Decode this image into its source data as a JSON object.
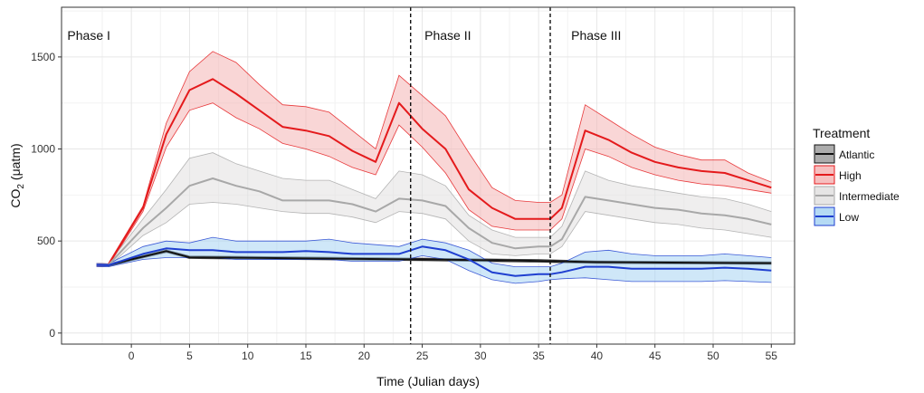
{
  "chart_data": {
    "type": "line",
    "xlabel": "Time (Julian days)",
    "ylabel_main": "CO",
    "ylabel_sub": "2",
    "ylabel_unit": "(μatm)",
    "xlim": [
      -6,
      57
    ],
    "ylim": [
      -60,
      1770
    ],
    "xticks": [
      0,
      5,
      10,
      15,
      20,
      25,
      30,
      35,
      40,
      45,
      50,
      55
    ],
    "yticks": [
      0,
      500,
      1000,
      1500
    ],
    "grid": true,
    "vlines": [
      24,
      36
    ],
    "phases": [
      {
        "label": "Phase I",
        "x": -5.5
      },
      {
        "label": "Phase II",
        "x": 25.2
      },
      {
        "label": "Phase III",
        "x": 37.8
      }
    ],
    "legend": {
      "title": "Treatment",
      "position": "right"
    },
    "series": [
      {
        "name": "Atlantic",
        "line_color": "#111111",
        "fill_color": "#9e9e9e",
        "x": [
          -3,
          -2,
          0,
          3,
          5,
          25,
          30,
          35,
          40,
          55
        ],
        "y": [
          370,
          368,
          400,
          445,
          412,
          400,
          396,
          392,
          385,
          380
        ],
        "lower": [
          362,
          360,
          393,
          438,
          405,
          393,
          389,
          385,
          378,
          373
        ],
        "upper": [
          378,
          376,
          407,
          452,
          419,
          407,
          403,
          399,
          392,
          387
        ]
      },
      {
        "name": "High",
        "line_color": "#e41a1c",
        "fill_color": "#f4b4b4",
        "x": [
          -3,
          -2,
          1,
          3,
          5,
          7,
          9,
          11,
          13,
          15,
          17,
          19,
          21,
          23,
          25,
          27,
          29,
          31,
          33,
          35,
          36,
          37,
          39,
          41,
          43,
          45,
          47,
          49,
          51,
          53,
          55
        ],
        "y": [
          370,
          368,
          680,
          1080,
          1320,
          1380,
          1300,
          1210,
          1120,
          1100,
          1070,
          990,
          930,
          1250,
          1110,
          1000,
          780,
          680,
          620,
          620,
          620,
          680,
          1100,
          1050,
          980,
          930,
          900,
          880,
          870,
          830,
          790
        ],
        "lower": [
          362,
          360,
          660,
          1010,
          1210,
          1250,
          1170,
          1110,
          1030,
          1000,
          960,
          900,
          860,
          1130,
          1010,
          870,
          670,
          580,
          560,
          560,
          560,
          620,
          1000,
          960,
          900,
          860,
          830,
          810,
          800,
          780,
          760
        ],
        "upper": [
          378,
          376,
          690,
          1140,
          1420,
          1530,
          1470,
          1350,
          1240,
          1230,
          1200,
          1100,
          1000,
          1400,
          1290,
          1180,
          980,
          790,
          720,
          710,
          710,
          750,
          1240,
          1160,
          1080,
          1010,
          970,
          940,
          940,
          870,
          820
        ]
      },
      {
        "name": "Intermediate",
        "line_color": "#a8a8a8",
        "fill_color": "#e2e0e0",
        "x": [
          -3,
          -2,
          1,
          3,
          5,
          7,
          9,
          11,
          13,
          15,
          17,
          19,
          21,
          23,
          25,
          27,
          29,
          31,
          33,
          35,
          36,
          37,
          39,
          41,
          43,
          45,
          47,
          49,
          51,
          53,
          55
        ],
        "y": [
          370,
          368,
          570,
          680,
          800,
          840,
          800,
          770,
          720,
          720,
          720,
          700,
          660,
          730,
          720,
          690,
          570,
          490,
          460,
          470,
          470,
          510,
          740,
          720,
          700,
          680,
          670,
          650,
          640,
          620,
          590
        ],
        "lower": [
          362,
          360,
          530,
          600,
          700,
          710,
          700,
          680,
          660,
          650,
          650,
          630,
          600,
          660,
          650,
          620,
          500,
          430,
          420,
          430,
          430,
          470,
          660,
          640,
          620,
          600,
          590,
          570,
          560,
          540,
          520
        ],
        "upper": [
          378,
          376,
          620,
          780,
          950,
          980,
          920,
          880,
          840,
          830,
          830,
          780,
          730,
          880,
          860,
          800,
          640,
          560,
          520,
          520,
          520,
          580,
          880,
          830,
          800,
          780,
          760,
          740,
          730,
          700,
          660
        ]
      },
      {
        "name": "Low",
        "line_color": "#1f3fd0",
        "fill_color": "#a8d4f2",
        "x": [
          -3,
          -2,
          1,
          3,
          5,
          7,
          9,
          11,
          13,
          15,
          17,
          19,
          21,
          23,
          25,
          27,
          29,
          31,
          33,
          35,
          36,
          37,
          39,
          41,
          43,
          45,
          47,
          49,
          51,
          53,
          55
        ],
        "y": [
          370,
          368,
          430,
          460,
          450,
          450,
          440,
          440,
          440,
          445,
          440,
          430,
          430,
          430,
          470,
          450,
          400,
          330,
          310,
          320,
          320,
          330,
          360,
          360,
          350,
          350,
          350,
          350,
          355,
          350,
          340
        ],
        "lower": [
          362,
          360,
          400,
          410,
          410,
          410,
          400,
          400,
          400,
          400,
          400,
          390,
          390,
          390,
          420,
          400,
          340,
          290,
          270,
          280,
          290,
          295,
          300,
          290,
          280,
          280,
          280,
          280,
          285,
          280,
          275
        ],
        "upper": [
          378,
          376,
          470,
          500,
          490,
          520,
          500,
          500,
          500,
          500,
          510,
          490,
          480,
          470,
          510,
          490,
          450,
          380,
          360,
          360,
          360,
          380,
          440,
          450,
          430,
          420,
          420,
          420,
          430,
          420,
          410
        ]
      }
    ]
  }
}
